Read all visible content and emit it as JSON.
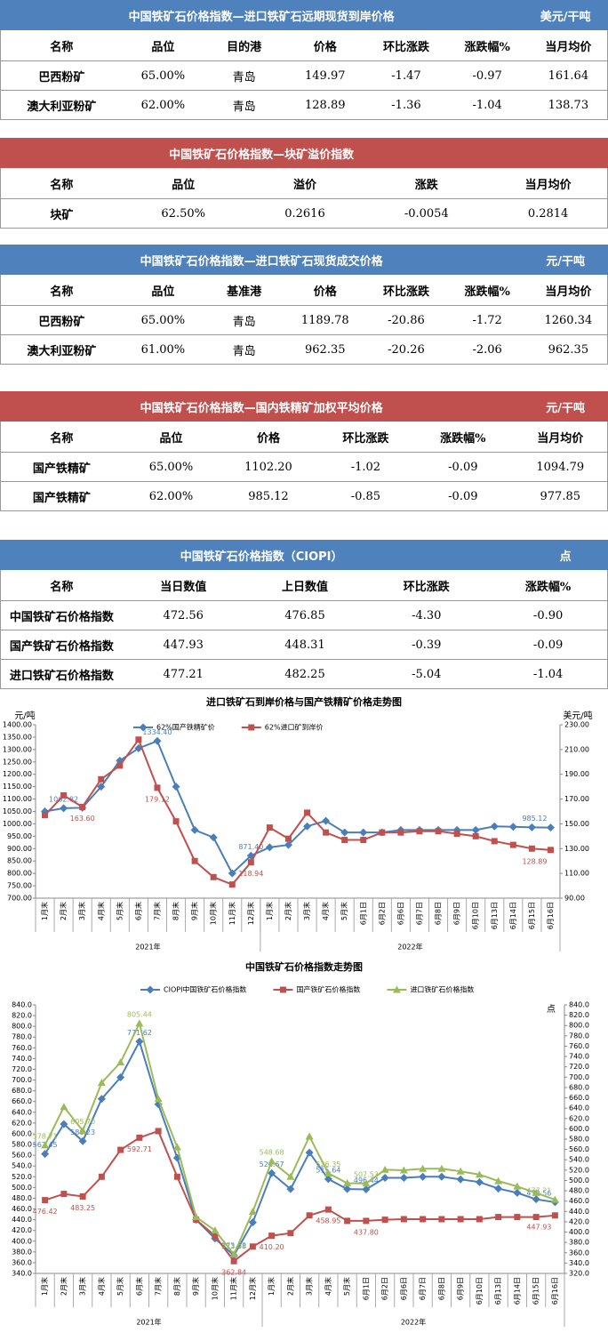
{
  "tables": [
    {
      "title": "中国铁矿石价格指数—进口铁矿石远期现货到岸价格",
      "unit": "美元/干吨",
      "color": "#4f81bd",
      "header": [
        "名称",
        "品位",
        "目的港",
        "价格",
        "环比涨跌",
        "涨跌幅%",
        "当月均价"
      ],
      "rows": [
        [
          "巴西粉矿",
          "65.00%",
          "青岛",
          "149.97",
          "-1.47",
          "-0.97",
          "161.64"
        ],
        [
          "澳大利亚粉矿",
          "62.00%",
          "青岛",
          "128.89",
          "-1.36",
          "-1.04",
          "138.73"
        ]
      ]
    },
    {
      "title": "中国铁矿石价格指数—块矿溢价指数",
      "color": "#c0504d",
      "header": [
        "名称",
        "品位",
        "溢价",
        "涨跌",
        "当月均价"
      ],
      "rows": [
        [
          "块矿",
          "62.50%",
          "0.2616",
          "-0.0054",
          "0.2814"
        ]
      ]
    },
    {
      "title": "中国铁矿石价格指数—进口铁矿石现货成交价格",
      "unit": "元/干吨",
      "color": "#4f81bd",
      "header": [
        "名称",
        "品位",
        "基准港",
        "价格",
        "环比涨跌",
        "涨跌幅%",
        "当月均价"
      ],
      "rows": [
        [
          "巴西粉矿",
          "65.00%",
          "青岛",
          "1189.78",
          "-20.86",
          "-1.72",
          "1260.34"
        ],
        [
          "澳大利亚粉矿",
          "61.00%",
          "青岛",
          "962.35",
          "-20.26",
          "-2.06",
          "962.35"
        ]
      ]
    },
    {
      "title": "中国铁矿石价格指数—国内铁精矿加权平均价格",
      "unit": "元/干吨",
      "color": "#c0504d",
      "header": [
        "名称",
        "品位",
        "价格",
        "环比涨跌",
        "涨跌幅%",
        "当月均价"
      ],
      "rows": [
        [
          "国产铁精矿",
          "65.00%",
          "1102.20",
          "-1.02",
          "-0.09",
          "1094.79"
        ],
        [
          "国产铁精矿",
          "62.00%",
          "985.12",
          "-0.85",
          "-0.09",
          "977.85"
        ]
      ]
    },
    {
      "title": "中国铁矿石价格指数（CIOPI）",
      "unit": "点",
      "color": "#4f81bd",
      "header": [
        "名称",
        "当日数值",
        "上日数值",
        "环比涨跌",
        "涨跌幅%"
      ],
      "rows": [
        [
          "中国铁矿石价格指数",
          "472.56",
          "476.85",
          "-4.30",
          "-0.90"
        ],
        [
          "国产铁矿石价格指数",
          "447.93",
          "448.31",
          "-0.39",
          "-0.09"
        ],
        [
          "进口铁矿石价格指数",
          "477.21",
          "482.25",
          "-5.04",
          "-1.04"
        ]
      ]
    }
  ],
  "chart_data": [
    {
      "type": "line",
      "title": "进口铁矿石到岸价格与国产铁精矿价格走势图",
      "ylabel": "元/吨",
      "y2label": "美元/吨",
      "categories": [
        "1月末",
        "2月末",
        "3月末",
        "4月末",
        "5月末",
        "6月末",
        "7月末",
        "8月末",
        "9月末",
        "10月末",
        "11月末",
        "12月末",
        "1月末",
        "2月末",
        "3月末",
        "4月末",
        "5月末",
        "6月1日",
        "6月2日",
        "6月6日",
        "6月7日",
        "6月8日",
        "6月9日",
        "6月10日",
        "6月13日",
        "6月14日",
        "6月15日",
        "6月16日"
      ],
      "groups": [
        {
          "label": "2021年",
          "span": 12
        },
        {
          "label": "2022年",
          "span": 16
        }
      ],
      "ylim": [
        700,
        1400
      ],
      "yticks": [
        {
          "value": 700,
          "label": "700.00"
        },
        {
          "value": 750,
          "label": "750.00"
        },
        {
          "value": 800,
          "label": "800.00"
        },
        {
          "value": 850,
          "label": "850.00"
        },
        {
          "value": 900,
          "label": "900.00"
        },
        {
          "value": 950,
          "label": "950.00"
        },
        {
          "value": 1000,
          "label": "1000.00"
        },
        {
          "value": 1050,
          "label": "1050.00"
        },
        {
          "value": 1100,
          "label": "1100.00"
        },
        {
          "value": 1150,
          "label": "1150.00"
        },
        {
          "value": 1200,
          "label": "1200.00"
        },
        {
          "value": 1250,
          "label": "1250.00"
        },
        {
          "value": 1300,
          "label": "1300.00"
        },
        {
          "value": 1350,
          "label": "1350.00"
        },
        {
          "value": 1400,
          "label": "1400.00"
        }
      ],
      "y2lim": [
        90,
        230
      ],
      "y2ticks": [
        {
          "value": 90,
          "label": "90.00"
        },
        {
          "value": 110,
          "label": "110.00"
        },
        {
          "value": 130,
          "label": "130.00"
        },
        {
          "value": 150,
          "label": "150.00"
        },
        {
          "value": 170,
          "label": "170.00"
        },
        {
          "value": 190,
          "label": "190.00"
        },
        {
          "value": 210,
          "label": "210.00"
        },
        {
          "value": 230,
          "label": "230.00"
        }
      ],
      "series": [
        {
          "name": "62%国产铁精矿价",
          "color": "#4a7ebb",
          "marker": "diamond",
          "values": [
            1050,
            1062.82,
            1065,
            1150,
            1255,
            1305,
            1334.4,
            1150,
            975,
            945,
            800,
            871.4,
            905,
            915,
            990,
            1012,
            965,
            965,
            965,
            975,
            975,
            975,
            975,
            975,
            990,
            988,
            986,
            985.12
          ],
          "value_labels": [
            null,
            "1062.82",
            null,
            null,
            null,
            null,
            "1334.40",
            null,
            null,
            null,
            null,
            "871.40",
            null,
            null,
            null,
            null,
            null,
            null,
            null,
            null,
            null,
            null,
            null,
            null,
            null,
            null,
            null,
            "985.12"
          ]
        },
        {
          "name": "62%进口矿到岸价",
          "color": "#c0504d",
          "marker": "square",
          "axis": "y2",
          "values": [
            157,
            173,
            163.6,
            186,
            197,
            218,
            179.12,
            152,
            120,
            107,
            101,
            118.94,
            147,
            138,
            159,
            143,
            137,
            137,
            143,
            143,
            144,
            144,
            142,
            140,
            136,
            133,
            130,
            128.89
          ],
          "value_labels": [
            null,
            null,
            "163.60",
            null,
            null,
            null,
            "179.12",
            null,
            null,
            null,
            null,
            "118.94",
            null,
            null,
            null,
            null,
            null,
            null,
            null,
            null,
            null,
            null,
            null,
            null,
            null,
            null,
            null,
            "128.89"
          ]
        }
      ]
    },
    {
      "type": "line",
      "title": "中国铁矿石价格指数走势图",
      "y2label": "点",
      "categories": [
        "1月末",
        "2月末",
        "3月末",
        "4月末",
        "5月末",
        "6月末",
        "7月末",
        "8月末",
        "9月末",
        "10月末",
        "11月末",
        "12月末",
        "1月末",
        "2月末",
        "3月末",
        "4月末",
        "5月末",
        "6月1日",
        "6月2日",
        "6月6日",
        "6月7日",
        "6月8日",
        "6月9日",
        "6月10日",
        "6月13日",
        "6月14日",
        "6月15日",
        "6月16日"
      ],
      "groups": [
        {
          "label": "2021年",
          "span": 12
        },
        {
          "label": "2022年",
          "span": 16
        }
      ],
      "ylim": [
        340,
        840
      ],
      "yticks": [
        {
          "value": 340,
          "label": "340.0"
        },
        {
          "value": 360,
          "label": "360.0"
        },
        {
          "value": 380,
          "label": "380.0"
        },
        {
          "value": 400,
          "label": "400.0"
        },
        {
          "value": 420,
          "label": "420.0"
        },
        {
          "value": 440,
          "label": "440.0"
        },
        {
          "value": 460,
          "label": "460.0"
        },
        {
          "value": 480,
          "label": "480.0"
        },
        {
          "value": 500,
          "label": "500.0"
        },
        {
          "value": 520,
          "label": "520.0"
        },
        {
          "value": 540,
          "label": "540.0"
        },
        {
          "value": 560,
          "label": "560.0"
        },
        {
          "value": 580,
          "label": "580.0"
        },
        {
          "value": 600,
          "label": "600.0"
        },
        {
          "value": 620,
          "label": "620.0"
        },
        {
          "value": 640,
          "label": "640.0"
        },
        {
          "value": 660,
          "label": "660.0"
        },
        {
          "value": 680,
          "label": "680.0"
        },
        {
          "value": 700,
          "label": "700.0"
        },
        {
          "value": 720,
          "label": "720.0"
        },
        {
          "value": 740,
          "label": "740.0"
        },
        {
          "value": 760,
          "label": "760.0"
        },
        {
          "value": 780,
          "label": "780.0"
        },
        {
          "value": 800,
          "label": "800.0"
        },
        {
          "value": 820,
          "label": "820.0"
        },
        {
          "value": 840,
          "label": "840.0"
        }
      ],
      "y2lim": [
        320,
        840
      ],
      "y2ticks": [
        {
          "value": 320,
          "label": "320.0"
        },
        {
          "value": 340,
          "label": "340.0"
        },
        {
          "value": 360,
          "label": "360.0"
        },
        {
          "value": 380,
          "label": "380.0"
        },
        {
          "value": 400,
          "label": "400.0"
        },
        {
          "value": 420,
          "label": "420.0"
        },
        {
          "value": 440,
          "label": "440.0"
        },
        {
          "value": 460,
          "label": "460.0"
        },
        {
          "value": 480,
          "label": "480.0"
        },
        {
          "value": 500,
          "label": "500.0"
        },
        {
          "value": 520,
          "label": "520.0"
        },
        {
          "value": 540,
          "label": "540.0"
        },
        {
          "value": 560,
          "label": "560.0"
        },
        {
          "value": 580,
          "label": "580.0"
        },
        {
          "value": 600,
          "label": "600.0"
        },
        {
          "value": 620,
          "label": "620.0"
        },
        {
          "value": 640,
          "label": "640.0"
        },
        {
          "value": 660,
          "label": "660.0"
        },
        {
          "value": 680,
          "label": "680.0"
        },
        {
          "value": 700,
          "label": "700.0"
        },
        {
          "value": 720,
          "label": "720.0"
        },
        {
          "value": 740,
          "label": "740.0"
        },
        {
          "value": 760,
          "label": "760.0"
        },
        {
          "value": 780,
          "label": "780.0"
        },
        {
          "value": 800,
          "label": "800.0"
        },
        {
          "value": 820,
          "label": "820.0"
        },
        {
          "value": 840,
          "label": "840.0"
        }
      ],
      "series": [
        {
          "name": "CIOPI中国铁矿石价格指数",
          "color": "#4a7ebb",
          "marker": "diamond",
          "values": [
            562.45,
            618,
            586.23,
            665,
            705,
            771.62,
            655,
            555,
            440,
            405,
            373.58,
            435,
            526.67,
            497,
            565,
            515.64,
            497,
            496.44,
            518,
            518,
            520,
            520,
            515,
            510,
            498,
            490,
            478,
            472.56
          ],
          "value_labels": [
            "562.45",
            null,
            "586.23",
            null,
            null,
            "771.62",
            null,
            null,
            null,
            null,
            "373.58",
            null,
            "526.67",
            null,
            null,
            "515.64",
            null,
            "496.44",
            null,
            null,
            null,
            null,
            null,
            null,
            null,
            null,
            null,
            "472.56"
          ]
        },
        {
          "name": "国产铁矿石价格指数",
          "color": "#c0504d",
          "marker": "square",
          "values": [
            476.42,
            488,
            483.25,
            520,
            570,
            592.71,
            605,
            520,
            440,
            410,
            362.84,
            390,
            410.2,
            415,
            448,
            458.95,
            437.8,
            437.8,
            440,
            441,
            441,
            441,
            441,
            441,
            445,
            445,
            445,
            447.93
          ],
          "value_labels": [
            "476.42",
            null,
            "483.25",
            null,
            null,
            "592.71",
            null,
            null,
            null,
            null,
            "362.84",
            null,
            "410.20",
            null,
            null,
            "458.95",
            null,
            "437.80",
            null,
            null,
            null,
            null,
            null,
            null,
            null,
            null,
            null,
            "447.93"
          ]
        },
        {
          "name": "进口铁矿石价格指数",
          "color": "#9bbb59",
          "marker": "triangle",
          "values": [
            578.71,
            650,
            605.7,
            695,
            733,
            805.44,
            665,
            575,
            445,
            420,
            375.63,
            455,
            548.68,
            520,
            595,
            526.35,
            508,
            507.53,
            533,
            532,
            535,
            535,
            530,
            524,
            512,
            502,
            490,
            477.21
          ],
          "value_labels": [
            "578.71",
            null,
            "605.70",
            null,
            null,
            "805.44",
            null,
            null,
            null,
            null,
            "375.63",
            null,
            "548.68",
            null,
            null,
            "526.35",
            null,
            "507.53",
            null,
            null,
            null,
            null,
            null,
            null,
            null,
            null,
            null,
            "477.21"
          ]
        }
      ]
    }
  ]
}
